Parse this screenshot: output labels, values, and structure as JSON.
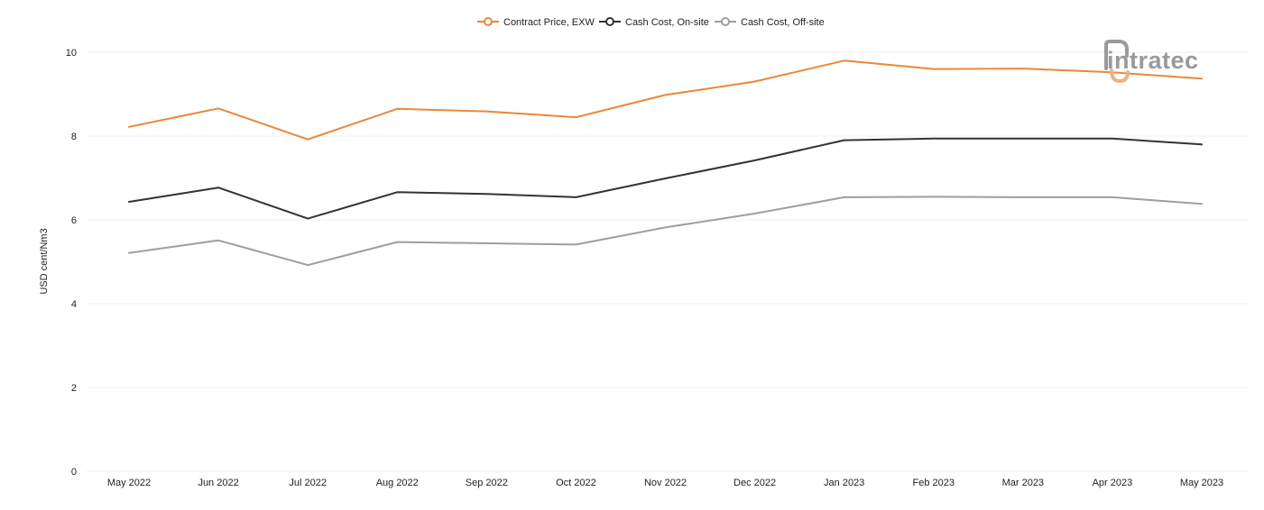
{
  "colors": {
    "contract_price": "#e8883a",
    "cash_cost_onsite": "#333333",
    "cash_cost_offsite": "#9e9e9e",
    "gridline": "#f1f1f1",
    "logo_gray": "#9a9a9a",
    "logo_accent": "#e8b48a"
  },
  "logo": {
    "text": "intratec"
  },
  "chart_data": {
    "type": "line",
    "title": "",
    "xlabel": "",
    "ylabel": "USD cent/Nm3",
    "ylim": [
      0,
      10
    ],
    "yticks": [
      0,
      2,
      4,
      6,
      8,
      10
    ],
    "grid": true,
    "legend_position": "top-center",
    "categories": [
      "May 2022",
      "Jun 2022",
      "Jul 2022",
      "Aug 2022",
      "Sep 2022",
      "Oct 2022",
      "Nov 2022",
      "Dec 2022",
      "Jan 2023",
      "Feb 2023",
      "Mar 2023",
      "Apr 2023",
      "May 2023"
    ],
    "series": [
      {
        "name": "Contract Price, EXW",
        "color": "#e8883a",
        "values": [
          8.22,
          8.66,
          7.92,
          8.65,
          8.59,
          8.45,
          8.98,
          9.3,
          9.8,
          9.6,
          9.61,
          9.52,
          9.37
        ]
      },
      {
        "name": "Cash Cost, On-site",
        "color": "#333333",
        "values": [
          6.43,
          6.77,
          6.03,
          6.66,
          6.62,
          6.54,
          6.99,
          7.42,
          7.9,
          7.94,
          7.94,
          7.94,
          7.8
        ]
      },
      {
        "name": "Cash Cost, Off-site",
        "color": "#9e9e9e",
        "values": [
          5.21,
          5.51,
          4.92,
          5.47,
          5.44,
          5.41,
          5.82,
          6.15,
          6.54,
          6.55,
          6.54,
          6.54,
          6.38
        ]
      }
    ]
  }
}
